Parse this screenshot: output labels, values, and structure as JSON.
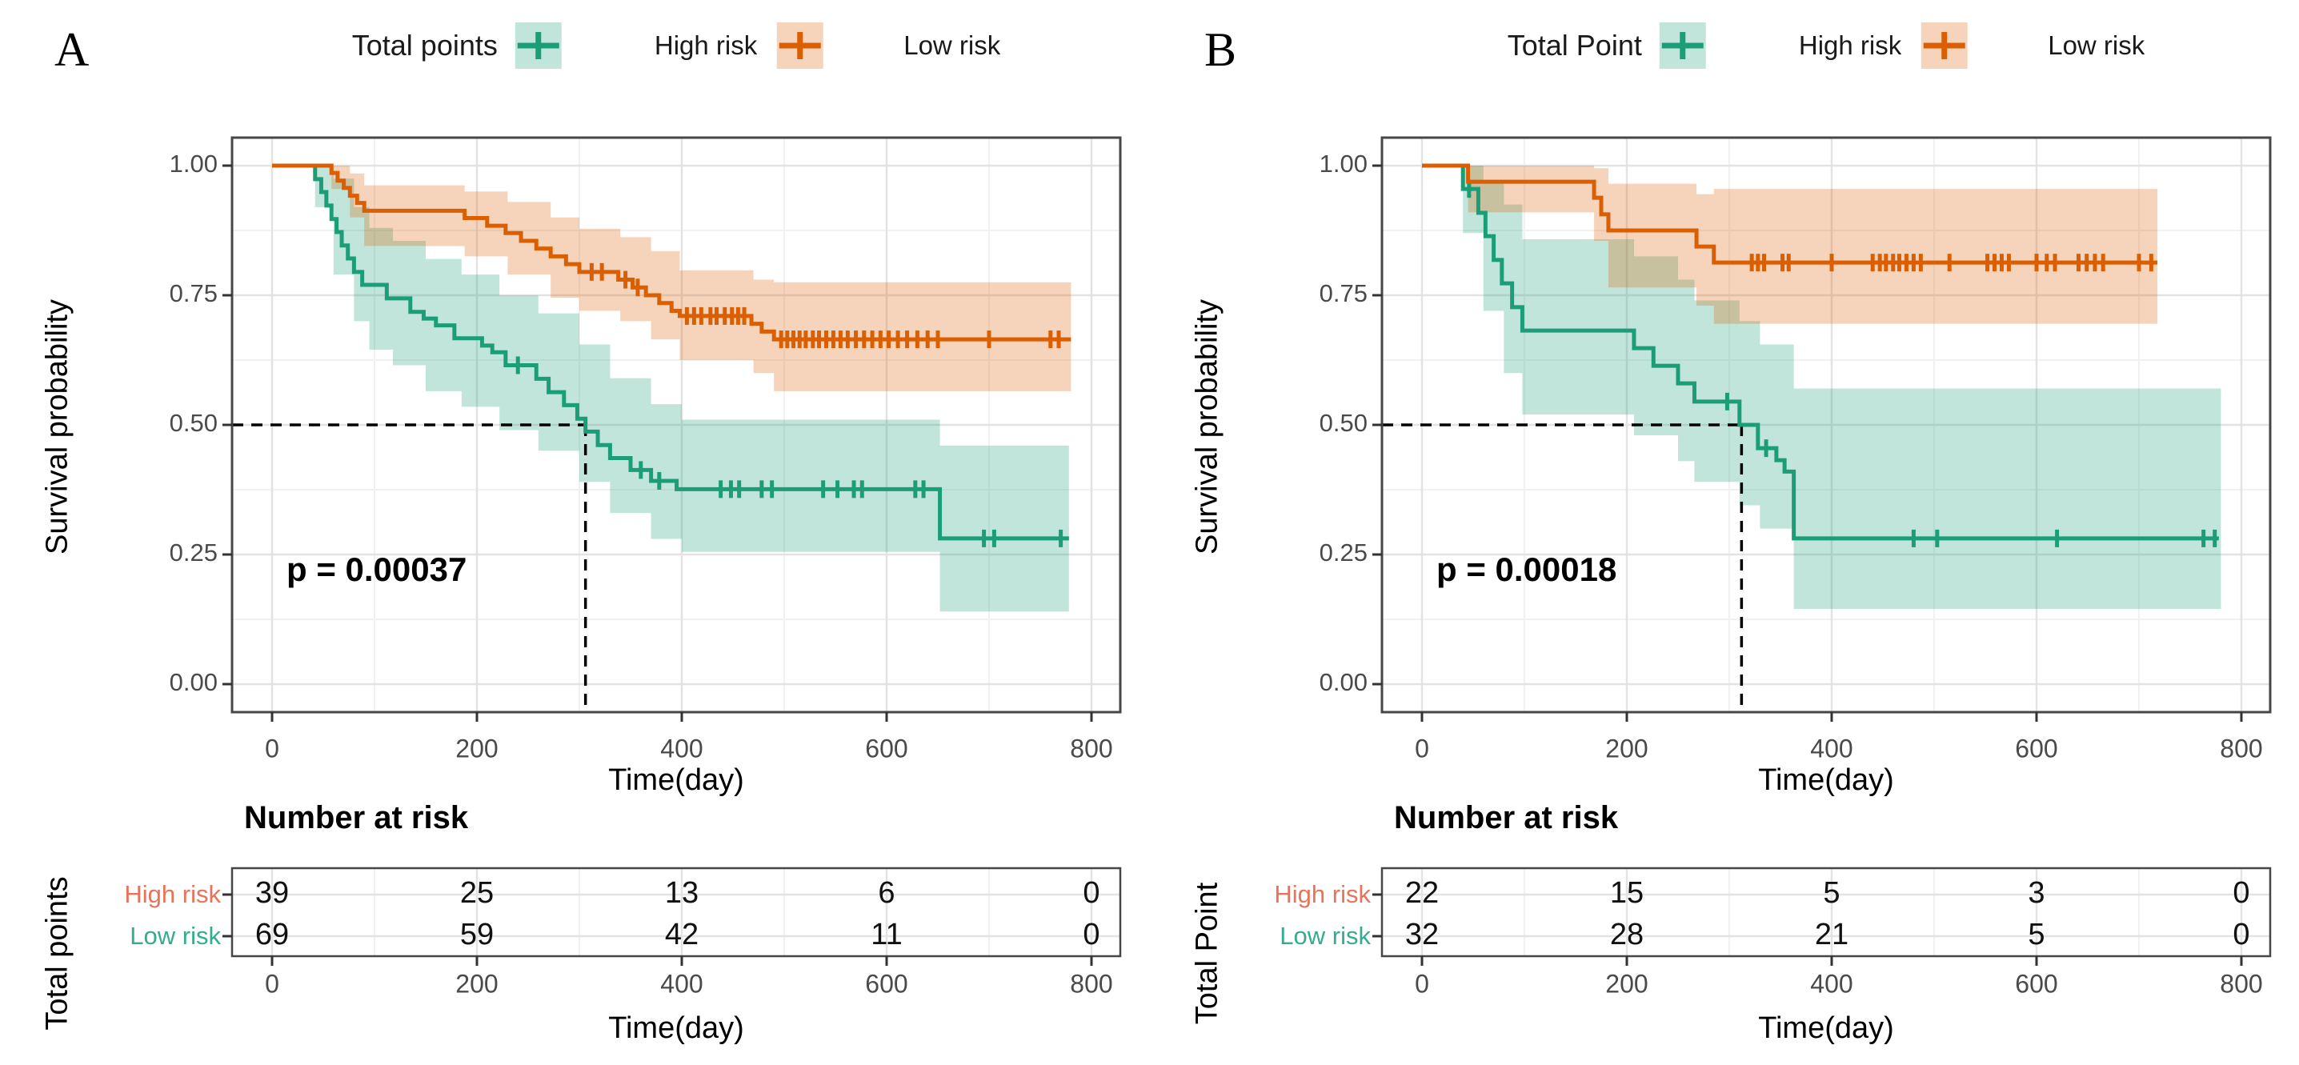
{
  "chart_data": [
    {
      "type": "line",
      "subtype": "kaplan-meier-step",
      "panel_letter": "A",
      "xlabel": "Time(day)",
      "ylabel": "Survival probability",
      "xticks": [
        0,
        200,
        400,
        600,
        800
      ],
      "yticks": [
        1.0,
        0.75,
        0.5,
        0.25,
        0.0
      ],
      "ytick_labels": [
        "1.00",
        "0.75",
        "0.50",
        "0.25",
        "0.00"
      ],
      "xlim": [
        -39,
        828
      ],
      "ylim": [
        -0.054,
        1.054
      ],
      "grid": true,
      "legend_position": "top",
      "pvalue_label": "p = 0.00037",
      "median_day": 306,
      "median_prob": 0.5,
      "legend": {
        "title": "Total points",
        "items": [
          {
            "label": "High risk"
          },
          {
            "label": "Low risk"
          }
        ]
      },
      "series": [
        {
          "name": "High risk",
          "color": "#1b9e77",
          "fill": "rgba(27,158,119,0.27)",
          "end_day": 778,
          "band_end_day": 778,
          "steps": [
            [
              0,
              1.0
            ],
            [
              42,
              0.974
            ],
            [
              48,
              0.949
            ],
            [
              53,
              0.923
            ],
            [
              58,
              0.897
            ],
            [
              63,
              0.872
            ],
            [
              68,
              0.846
            ],
            [
              74,
              0.821
            ],
            [
              80,
              0.795
            ],
            [
              88,
              0.77
            ],
            [
              112,
              0.744
            ],
            [
              135,
              0.718
            ],
            [
              148,
              0.705
            ],
            [
              160,
              0.692
            ],
            [
              178,
              0.667
            ],
            [
              205,
              0.653
            ],
            [
              215,
              0.64
            ],
            [
              228,
              0.615
            ],
            [
              258,
              0.589
            ],
            [
              270,
              0.563
            ],
            [
              285,
              0.538
            ],
            [
              298,
              0.512
            ],
            [
              306,
              0.487
            ],
            [
              318,
              0.461
            ],
            [
              330,
              0.436
            ],
            [
              350,
              0.413
            ],
            [
              370,
              0.392
            ],
            [
              395,
              0.376
            ],
            [
              652,
              0.281
            ]
          ],
          "censors": [
            [
              240,
              0.615
            ],
            [
              360,
              0.413
            ],
            [
              378,
              0.392
            ],
            [
              438,
              0.376
            ],
            [
              448,
              0.376
            ],
            [
              456,
              0.376
            ],
            [
              478,
              0.376
            ],
            [
              488,
              0.376
            ],
            [
              538,
              0.376
            ],
            [
              552,
              0.376
            ],
            [
              568,
              0.376
            ],
            [
              576,
              0.376
            ],
            [
              628,
              0.376
            ],
            [
              636,
              0.376
            ],
            [
              695,
              0.281
            ],
            [
              705,
              0.281
            ],
            [
              770,
              0.281
            ]
          ],
          "band": [
            [
              42,
              0.92,
              1.0
            ],
            [
              60,
              0.79,
              0.975
            ],
            [
              80,
              0.7,
              0.92
            ],
            [
              95,
              0.645,
              0.88
            ],
            [
              118,
              0.615,
              0.855
            ],
            [
              150,
              0.565,
              0.82
            ],
            [
              185,
              0.535,
              0.79
            ],
            [
              222,
              0.49,
              0.75
            ],
            [
              260,
              0.45,
              0.715
            ],
            [
              300,
              0.39,
              0.655
            ],
            [
              330,
              0.33,
              0.59
            ],
            [
              370,
              0.28,
              0.54
            ],
            [
              400,
              0.255,
              0.51
            ],
            [
              652,
              0.14,
              0.46
            ]
          ]
        },
        {
          "name": "Low risk",
          "color": "#d95f02",
          "fill": "rgba(217,95,2,0.27)",
          "end_day": 780,
          "band_end_day": 780,
          "steps": [
            [
              0,
              1.0
            ],
            [
              58,
              0.986
            ],
            [
              64,
              0.971
            ],
            [
              70,
              0.957
            ],
            [
              76,
              0.942
            ],
            [
              83,
              0.928
            ],
            [
              90,
              0.913
            ],
            [
              188,
              0.899
            ],
            [
              210,
              0.884
            ],
            [
              228,
              0.87
            ],
            [
              243,
              0.855
            ],
            [
              258,
              0.84
            ],
            [
              272,
              0.825
            ],
            [
              287,
              0.81
            ],
            [
              300,
              0.795
            ],
            [
              338,
              0.78
            ],
            [
              352,
              0.765
            ],
            [
              365,
              0.75
            ],
            [
              378,
              0.735
            ],
            [
              390,
              0.72
            ],
            [
              398,
              0.71
            ],
            [
              468,
              0.695
            ],
            [
              478,
              0.68
            ],
            [
              490,
              0.665
            ]
          ],
          "censors": [
            [
              312,
              0.795
            ],
            [
              322,
              0.795
            ],
            [
              345,
              0.78
            ],
            [
              357,
              0.765
            ],
            [
              405,
              0.71
            ],
            [
              412,
              0.71
            ],
            [
              419,
              0.71
            ],
            [
              428,
              0.71
            ],
            [
              434,
              0.71
            ],
            [
              442,
              0.71
            ],
            [
              449,
              0.71
            ],
            [
              455,
              0.71
            ],
            [
              461,
              0.71
            ],
            [
              497,
              0.665
            ],
            [
              503,
              0.665
            ],
            [
              509,
              0.665
            ],
            [
              515,
              0.665
            ],
            [
              521,
              0.665
            ],
            [
              528,
              0.665
            ],
            [
              534,
              0.665
            ],
            [
              541,
              0.665
            ],
            [
              548,
              0.665
            ],
            [
              555,
              0.665
            ],
            [
              562,
              0.665
            ],
            [
              570,
              0.665
            ],
            [
              578,
              0.665
            ],
            [
              586,
              0.665
            ],
            [
              594,
              0.665
            ],
            [
              602,
              0.665
            ],
            [
              611,
              0.665
            ],
            [
              620,
              0.665
            ],
            [
              630,
              0.665
            ],
            [
              640,
              0.665
            ],
            [
              650,
              0.665
            ],
            [
              700,
              0.665
            ],
            [
              760,
              0.665
            ],
            [
              768,
              0.665
            ]
          ],
          "band": [
            [
              58,
              0.955,
              1.0
            ],
            [
              76,
              0.9,
              0.985
            ],
            [
              90,
              0.845,
              0.962
            ],
            [
              188,
              0.825,
              0.95
            ],
            [
              230,
              0.79,
              0.93
            ],
            [
              272,
              0.745,
              0.9
            ],
            [
              300,
              0.72,
              0.878
            ],
            [
              340,
              0.7,
              0.862
            ],
            [
              370,
              0.665,
              0.835
            ],
            [
              398,
              0.625,
              0.798
            ],
            [
              470,
              0.6,
              0.78
            ],
            [
              490,
              0.565,
              0.775
            ]
          ]
        }
      ],
      "risk_table": {
        "title": "Number at risk",
        "axis_label": "Total points",
        "xlabel": "Time(day)",
        "xticks": [
          0,
          200,
          400,
          600,
          800
        ],
        "rows": [
          {
            "label": "High risk",
            "label_color": "#e8735a",
            "values": [
              "39",
              "25",
              "13",
              "6",
              "0"
            ]
          },
          {
            "label": "Low risk",
            "label_color": "#35ab8f",
            "values": [
              "69",
              "59",
              "42",
              "11",
              "0"
            ]
          }
        ]
      }
    },
    {
      "type": "line",
      "subtype": "kaplan-meier-step",
      "panel_letter": "B",
      "xlabel": "Time(day)",
      "ylabel": "Survival probability",
      "xticks": [
        0,
        200,
        400,
        600,
        800
      ],
      "yticks": [
        1.0,
        0.75,
        0.5,
        0.25,
        0.0
      ],
      "ytick_labels": [
        "1.00",
        "0.75",
        "0.50",
        "0.25",
        "0.00"
      ],
      "xlim": [
        -39,
        828
      ],
      "ylim": [
        -0.054,
        1.054
      ],
      "grid": true,
      "legend_position": "top",
      "pvalue_label": "p = 0.00018",
      "median_day": 312,
      "median_prob": 0.5,
      "legend": {
        "title": "Total Point",
        "items": [
          {
            "label": "High risk"
          },
          {
            "label": "Low risk"
          }
        ]
      },
      "series": [
        {
          "name": "High risk",
          "color": "#1b9e77",
          "fill": "rgba(27,158,119,0.27)",
          "end_day": 778,
          "band_end_day": 780,
          "steps": [
            [
              0,
              1.0
            ],
            [
              40,
              0.955
            ],
            [
              55,
              0.909
            ],
            [
              62,
              0.864
            ],
            [
              70,
              0.818
            ],
            [
              78,
              0.773
            ],
            [
              88,
              0.727
            ],
            [
              98,
              0.682
            ],
            [
              207,
              0.648
            ],
            [
              226,
              0.614
            ],
            [
              250,
              0.58
            ],
            [
              266,
              0.545
            ],
            [
              310,
              0.5
            ],
            [
              328,
              0.455
            ],
            [
              346,
              0.432
            ],
            [
              354,
              0.41
            ],
            [
              363,
              0.281
            ]
          ],
          "censors": [
            [
              46,
              0.955
            ],
            [
              298,
              0.545
            ],
            [
              336,
              0.455
            ],
            [
              480,
              0.281
            ],
            [
              503,
              0.281
            ],
            [
              620,
              0.281
            ],
            [
              763,
              0.281
            ],
            [
              774,
              0.281
            ]
          ],
          "band": [
            [
              40,
              0.87,
              1.0
            ],
            [
              60,
              0.72,
              0.97
            ],
            [
              80,
              0.6,
              0.925
            ],
            [
              98,
              0.52,
              0.858
            ],
            [
              207,
              0.48,
              0.825
            ],
            [
              250,
              0.43,
              0.78
            ],
            [
              266,
              0.39,
              0.74
            ],
            [
              310,
              0.345,
              0.7
            ],
            [
              330,
              0.3,
              0.655
            ],
            [
              363,
              0.145,
              0.57
            ]
          ]
        },
        {
          "name": "Low risk",
          "color": "#d95f02",
          "fill": "rgba(217,95,2,0.27)",
          "end_day": 718,
          "band_end_day": 718,
          "steps": [
            [
              0,
              1.0
            ],
            [
              45,
              0.969
            ],
            [
              168,
              0.938
            ],
            [
              175,
              0.906
            ],
            [
              182,
              0.875
            ],
            [
              268,
              0.844
            ],
            [
              285,
              0.813
            ]
          ],
          "censors": [
            [
              322,
              0.813
            ],
            [
              328,
              0.813
            ],
            [
              334,
              0.813
            ],
            [
              352,
              0.813
            ],
            [
              358,
              0.813
            ],
            [
              400,
              0.813
            ],
            [
              440,
              0.813
            ],
            [
              447,
              0.813
            ],
            [
              453,
              0.813
            ],
            [
              460,
              0.813
            ],
            [
              466,
              0.813
            ],
            [
              473,
              0.813
            ],
            [
              480,
              0.813
            ],
            [
              487,
              0.813
            ],
            [
              515,
              0.813
            ],
            [
              552,
              0.813
            ],
            [
              559,
              0.813
            ],
            [
              566,
              0.813
            ],
            [
              573,
              0.813
            ],
            [
              600,
              0.813
            ],
            [
              610,
              0.813
            ],
            [
              618,
              0.813
            ],
            [
              641,
              0.813
            ],
            [
              649,
              0.813
            ],
            [
              657,
              0.813
            ],
            [
              665,
              0.813
            ],
            [
              700,
              0.813
            ],
            [
              712,
              0.813
            ]
          ],
          "band": [
            [
              45,
              0.91,
              1.0
            ],
            [
              168,
              0.855,
              0.995
            ],
            [
              182,
              0.765,
              0.965
            ],
            [
              268,
              0.73,
              0.945
            ],
            [
              285,
              0.695,
              0.955
            ]
          ]
        }
      ],
      "risk_table": {
        "title": "Number at risk",
        "axis_label": "Total Point",
        "xlabel": "Time(day)",
        "xticks": [
          0,
          200,
          400,
          600,
          800
        ],
        "rows": [
          {
            "label": "High risk",
            "label_color": "#e8735a",
            "values": [
              "22",
              "15",
              "5",
              "3",
              "0"
            ]
          },
          {
            "label": "Low risk",
            "label_color": "#35ab8f",
            "values": [
              "32",
              "28",
              "21",
              "5",
              "0"
            ]
          }
        ]
      }
    }
  ],
  "style": {
    "palette_green": "#1b9e77",
    "palette_orange": "#d95f02",
    "grid_major": "#e3e3e3",
    "grid_minor": "#f1f1f1",
    "panel_border": "#464646",
    "tick_label_color": "#4a4a4a"
  }
}
